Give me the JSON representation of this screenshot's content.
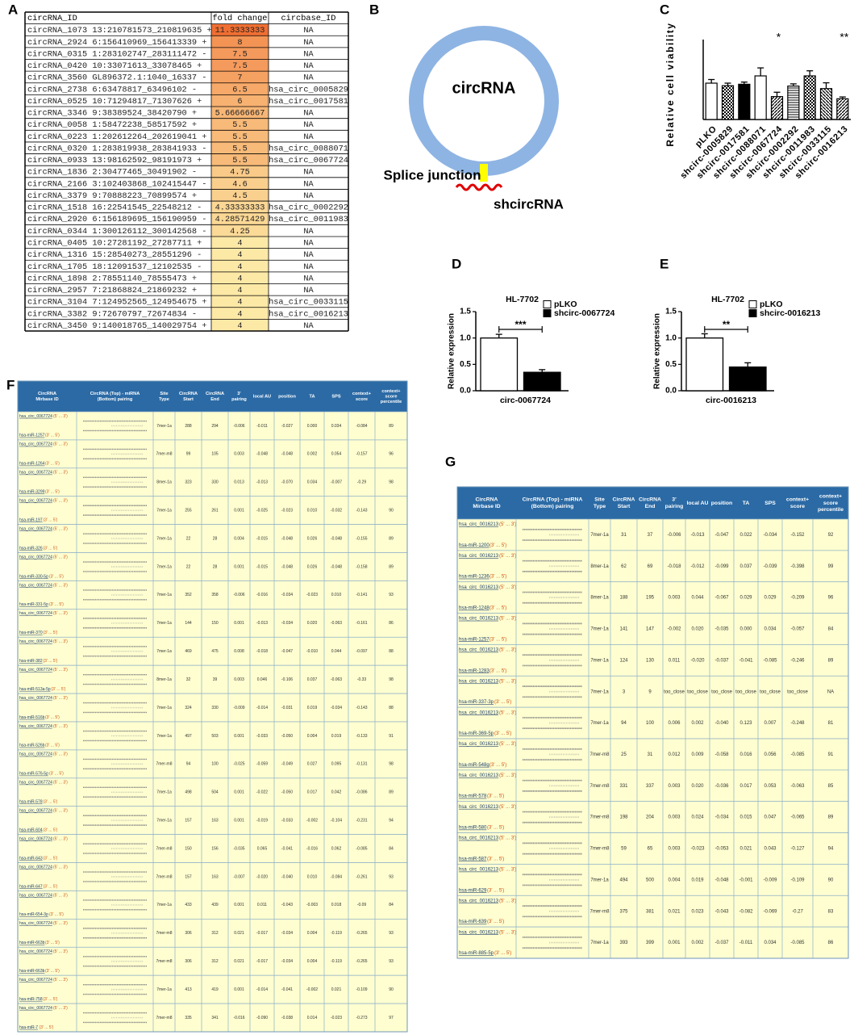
{
  "panel_labels": [
    "A",
    "B",
    "C",
    "D",
    "E",
    "F",
    "G"
  ],
  "table_a": {
    "headers": [
      "circRNA_ID",
      "fold change",
      "circbase_ID"
    ],
    "rows": [
      [
        "circRNA_1073 13:210781573_210819635 +",
        11.3333333,
        "NA"
      ],
      [
        "circRNA_2924 6:156410969_156413339 +",
        8,
        "NA"
      ],
      [
        "circRNA_0315 1:283102747_283111472 -",
        7.5,
        "NA"
      ],
      [
        "circRNA_0420 10:33071613_33078465 +",
        7.5,
        "NA"
      ],
      [
        "circRNA_3560 GL896372.1:1040_16337 -",
        7,
        "NA"
      ],
      [
        "circRNA_2738 6:63478817_63496102 -",
        6.5,
        "hsa_circ_0005829"
      ],
      [
        "circRNA_0525 10:71294817_71307626 +",
        6,
        "hsa_circ_0017581"
      ],
      [
        "circRNA_3346 9:38389524_38420790 +",
        5.66666667,
        "NA"
      ],
      [
        "circRNA_0058 1:58472238_58517592 +",
        5.5,
        "NA"
      ],
      [
        "circRNA_0223 1:202612264_202619041 +",
        5.5,
        "NA"
      ],
      [
        "circRNA_0320 1:283819938_283841933 -",
        5.5,
        "hsa_circ_0088071"
      ],
      [
        "circRNA_0933 13:98162592_98191973 +",
        5.5,
        "hsa_circ_0067724"
      ],
      [
        "circRNA_1836 2:30477465_30491902 -",
        4.75,
        "NA"
      ],
      [
        "circRNA_2166 3:102403868_102415447 -",
        4.6,
        "NA"
      ],
      [
        "circRNA_3379 9:70888223_70899574 +",
        4.5,
        "NA"
      ],
      [
        "circRNA_1518 16:22541545_22548212 -",
        4.33333333,
        "hsa_circ_0002292"
      ],
      [
        "circRNA_2920 6:156189695_156190959 -",
        4.28571429,
        "hsa_circ_0011983"
      ],
      [
        "circRNA_0344 1:300126112_300142568 -",
        4.25,
        "NA"
      ],
      [
        "circRNA_0405 10:27281192_27287711 +",
        4,
        "NA"
      ],
      [
        "circRNA_1316 15:28540273_28551296 -",
        4,
        "NA"
      ],
      [
        "circRNA_1705 18:12091537_12102535 -",
        4,
        "NA"
      ],
      [
        "circRNA_1898 2:78551140_78555473 +",
        4,
        "NA"
      ],
      [
        "circRNA_2957 7:21868824_21869232 +",
        4,
        "NA"
      ],
      [
        "circRNA_3104 7:124952565_124954675 +",
        4,
        "hsa_circ_0033115"
      ],
      [
        "circRNA_3382 9:72670797_72674834 -",
        4,
        "hsa_circ_0016213"
      ],
      [
        "circRNA_3450 9:140018765_140029754 +",
        4,
        "NA"
      ]
    ]
  },
  "diagram_b": {
    "ring": "circRNA",
    "junction": "Splice junction",
    "hairpin": "shcircRNA"
  },
  "chart_data": [
    {
      "type": "bar",
      "y_label": "Relative cell viability",
      "categories": [
        "pLKO",
        "shcirc-0005829",
        "shcirc-0017581",
        "shcirc-0088071",
        "shcirc-0067724",
        "shcirc-0002292",
        "shcirc-0011983",
        "shcirc-0033115",
        "shcirc-0016213"
      ],
      "values": [
        1.0,
        0.93,
        0.97,
        1.2,
        0.63,
        0.92,
        1.2,
        0.85,
        0.57
      ],
      "errors": [
        0.1,
        0.07,
        0.06,
        0.22,
        0.12,
        0.06,
        0.14,
        0.16,
        0.05
      ],
      "fills": [
        "#ffffff",
        "url(#pat-checker)",
        "#000000",
        "#ffffff",
        "url(#pat-diag)",
        "url(#pat-hline)",
        "url(#pat-checker)",
        "url(#pat-diag2)",
        "url(#pat-diag)"
      ],
      "ylim": [
        0,
        2.2
      ],
      "annotations": [
        {
          "text": "*",
          "x": "shcirc-0067724"
        },
        {
          "text": "**",
          "x": "shcirc-0016213"
        }
      ]
    },
    {
      "type": "bar",
      "title": "HL-7702",
      "y_label": "Relative expression",
      "categories": [
        "circ-0067724"
      ],
      "series": [
        {
          "name": "pLKO",
          "color": "#ffffff",
          "values": [
            1.0
          ],
          "errors": [
            0.07
          ]
        },
        {
          "name": "shcirc-0067724",
          "color": "#000000",
          "values": [
            0.35
          ],
          "errors": [
            0.05
          ]
        }
      ],
      "ylim": [
        0,
        1.5
      ],
      "yticks": [
        {
          "value": 0,
          "label": "0.0"
        },
        0.5,
        {
          "value": 1,
          "label": "1.0"
        },
        1.5
      ],
      "legend": "upper right",
      "annotation": "***"
    },
    {
      "type": "bar",
      "title": "HL-7702",
      "y_label": "Relative expression",
      "categories": [
        "circ-0016213"
      ],
      "series": [
        {
          "name": "pLKO",
          "color": "#ffffff",
          "values": [
            1.0
          ],
          "errors": [
            0.08
          ]
        },
        {
          "name": "shcirc-0016213",
          "color": "#000000",
          "values": [
            0.45
          ],
          "errors": [
            0.08
          ]
        }
      ],
      "ylim": [
        0,
        1.5
      ],
      "yticks": [
        {
          "value": 0,
          "label": "0.0"
        },
        0.5,
        {
          "value": 1,
          "label": "1.0"
        },
        1.5
      ],
      "legend": "upper right",
      "annotation": "**"
    }
  ],
  "table_f": {
    "headers": [
      [
        "CircRNA",
        "Mirbase ID"
      ],
      [
        "CircRNA (Top) - miRNA",
        "(Bottom) pairing"
      ],
      [
        "Site",
        "Type"
      ],
      [
        "CircRNA",
        "Start"
      ],
      [
        "CircRNA",
        "End"
      ],
      [
        "3'",
        "pairing"
      ],
      [
        "local AU"
      ],
      [
        "position"
      ],
      [
        "TA"
      ],
      [
        "SPS"
      ],
      [
        "context+",
        "score"
      ],
      [
        "context+",
        "score",
        "percentile"
      ]
    ],
    "circ_dir": "(5' ... 3')",
    "mirna_dir": "(3' ... 5')",
    "rows": [
      [
        "hsa_circ_0067724",
        "hsa-miR-1257",
        "7mer-1a",
        "288",
        "294",
        "-0.006",
        "-0.011",
        "-0.027",
        "0.000",
        "0.034",
        "-0.084",
        "89"
      ],
      [
        "hsa_circ_0067724",
        "hsa-miR-1264",
        "7mer-m8",
        "99",
        "105",
        "0.003",
        "-0.048",
        "-0.048",
        "0.002",
        "0.054",
        "-0.157",
        "96"
      ],
      [
        "hsa_circ_0067724",
        "hsa-miR-3299",
        "8mer-1a",
        "323",
        "330",
        "0.013",
        "-0.013",
        "-0.070",
        "0.034",
        "-0.007",
        "-0.29",
        "98"
      ],
      [
        "hsa_circ_0067724",
        "hsa-miR-197",
        "7mer-1a",
        "255",
        "261",
        "0.001",
        "-0.025",
        "-0.023",
        "0.010",
        "-0.032",
        "-0.143",
        "90"
      ],
      [
        "hsa_circ_0067724",
        "hsa-miR-326",
        "7mer-1a",
        "22",
        "28",
        "0.004",
        "-0.015",
        "-0.048",
        "0.026",
        "-0.048",
        "-0.155",
        "89"
      ],
      [
        "hsa_circ_0067724",
        "hsa-miR-330-5p",
        "7mer-1a",
        "22",
        "28",
        "0.001",
        "-0.015",
        "-0.048",
        "0.026",
        "-0.048",
        "-0.158",
        "89"
      ],
      [
        "hsa_circ_0067724",
        "hsa-miR-331-5p",
        "7mer-1a",
        "352",
        "358",
        "-0.006",
        "-0.016",
        "-0.034",
        "-0.023",
        "0.010",
        "-0.141",
        "93"
      ],
      [
        "hsa_circ_0067724",
        "hsa-miR-370",
        "7mer-1a",
        "144",
        "150",
        "0.001",
        "-0.013",
        "-0.034",
        "0.020",
        "-0.063",
        "-0.161",
        "86"
      ],
      [
        "hsa_circ_0067724",
        "hsa-miR-382",
        "7mer-1a",
        "469",
        "475",
        "0.008",
        "-0.018",
        "-0.047",
        "-0.010",
        "0.044",
        "-0.097",
        "88"
      ],
      [
        "hsa_circ_0067724",
        "hsa-miR-513a-5p",
        "8mer-1a",
        "32",
        "39",
        "0.003",
        "0.046",
        "-0.106",
        "0.037",
        "-0.063",
        "-0.33",
        "98"
      ],
      [
        "hsa_circ_0067724",
        "hsa-miR-516b",
        "7mer-1a",
        "324",
        "330",
        "-0.009",
        "-0.014",
        "-0.031",
        "0.019",
        "-0.034",
        "-0.143",
        "88"
      ],
      [
        "hsa_circ_0067724",
        "hsa-miR-526b",
        "7mer-1a",
        "497",
        "503",
        "0.001",
        "-0.033",
        "-0.050",
        "0.004",
        "0.019",
        "-0.133",
        "91"
      ],
      [
        "hsa_circ_0067724",
        "hsa-miR-576-5p",
        "7mer-m8",
        "94",
        "100",
        "-0.025",
        "-0.059",
        "-0.049",
        "0.027",
        "0.095",
        "-0.131",
        "98"
      ],
      [
        "hsa_circ_0067724",
        "hsa-miR-578",
        "7mer-1a",
        "498",
        "504",
        "0.001",
        "-0.022",
        "-0.050",
        "0.017",
        "0.042",
        "-0.086",
        "89"
      ],
      [
        "hsa_circ_0067724",
        "hsa-miR-604",
        "7mer-1a",
        "157",
        "163",
        "0.001",
        "-0.019",
        "-0.033",
        "-0.002",
        "-0.104",
        "-0.231",
        "94"
      ],
      [
        "hsa_circ_0067724",
        "hsa-miR-643",
        "7mer-m8",
        "150",
        "156",
        "-0.035",
        "0.065",
        "-0.041",
        "-0.016",
        "0.062",
        "-0.085",
        "84"
      ],
      [
        "hsa_circ_0067724",
        "hsa-miR-647",
        "7mer-m8",
        "157",
        "163",
        "-0.007",
        "-0.020",
        "-0.040",
        "0.010",
        "-0.084",
        "-0.261",
        "93"
      ],
      [
        "hsa_circ_0067724",
        "hsa-miR-654-3p",
        "7mer-1a",
        "433",
        "439",
        "0.001",
        "0.011",
        "-0.043",
        "-0.003",
        "0.018",
        "-0.09",
        "84"
      ],
      [
        "hsa_circ_0067724",
        "hsa-miR-663b",
        "7mer-m8",
        "306",
        "312",
        "0.021",
        "-0.017",
        "-0.034",
        "0.004",
        "-0.119",
        "-0.265",
        "93"
      ],
      [
        "hsa_circ_0067724",
        "hsa-miR-663b",
        "7mer-m8",
        "306",
        "312",
        "0.021",
        "-0.017",
        "-0.034",
        "0.004",
        "-0.119",
        "-0.265",
        "93"
      ],
      [
        "hsa_circ_0067724",
        "hsa-miR-758",
        "7mer-1a",
        "413",
        "419",
        "0.001",
        "-0.014",
        "-0.041",
        "-0.002",
        "0.021",
        "-0.109",
        "90"
      ],
      [
        "hsa_circ_0067724",
        "hsa-miR-7",
        "7mer-m8",
        "335",
        "341",
        "-0.016",
        "-0.090",
        "-0.038",
        "0.014",
        "-0.023",
        "-0.273",
        "97"
      ]
    ]
  },
  "table_g": {
    "headers": [
      [
        "CircRNA",
        "Mirbase ID"
      ],
      [
        "CircRNA (Top) - miRNA",
        "(Bottom) pairing"
      ],
      [
        "Site",
        "Type"
      ],
      [
        "CircRNA",
        "Start"
      ],
      [
        "CircRNA",
        "End"
      ],
      [
        "3'",
        "pairing"
      ],
      [
        "local AU"
      ],
      [
        "position"
      ],
      [
        "TA"
      ],
      [
        "SPS"
      ],
      [
        "context+",
        "score"
      ],
      [
        "context+",
        "score",
        "percentile"
      ]
    ],
    "circ_dir": "(5' ... 3')",
    "mirna_dir": "(3' ... 5')",
    "rows": [
      [
        "hsa_circ_0016213",
        "hsa-miR-1200",
        "7mer-1a",
        "31",
        "37",
        "-0.006",
        "-0.013",
        "-0.047",
        "0.022",
        "-0.034",
        "-0.152",
        "92"
      ],
      [
        "hsa_circ_0016213",
        "hsa-miR-1236",
        "8mer-1a",
        "62",
        "69",
        "-0.018",
        "-0.012",
        "-0.099",
        "0.037",
        "-0.039",
        "-0.398",
        "99"
      ],
      [
        "hsa_circ_0016213",
        "hsa-miR-1248",
        "8mer-1a",
        "188",
        "195",
        "0.003",
        "0.044",
        "-0.067",
        "0.029",
        "0.029",
        "-0.209",
        "96"
      ],
      [
        "hsa_circ_0016213",
        "hsa-miR-1257",
        "7mer-1a",
        "141",
        "147",
        "-0.002",
        "0.020",
        "-0.035",
        "0.000",
        "0.034",
        "-0.057",
        "84"
      ],
      [
        "hsa_circ_0016213",
        "hsa-miR-1283",
        "7mer-1a",
        "124",
        "130",
        "0.011",
        "-0.020",
        "-0.037",
        "-0.041",
        "-0.085",
        "-0.246",
        "89"
      ],
      [
        "hsa_circ_0016213",
        "hsa-miR-337-3p",
        "7mer-1a",
        "3",
        "9",
        "too_close",
        "too_close",
        "too_close",
        "too_close",
        "too_close",
        "too_close",
        "NA"
      ],
      [
        "hsa_circ_0016213",
        "hsa-miR-369-5p",
        "7mer-1a",
        "94",
        "100",
        "0.006",
        "0.002",
        "-0.040",
        "0.123",
        "0.007",
        "-0.248",
        "81"
      ],
      [
        "hsa_circ_0016213",
        "hsa-miR-548g",
        "7mer-m8",
        "25",
        "31",
        "0.012",
        "0.009",
        "-0.058",
        "0.016",
        "0.056",
        "-0.085",
        "91"
      ],
      [
        "hsa_circ_0016213",
        "hsa-miR-578",
        "7mer-m8",
        "331",
        "337",
        "0.003",
        "0.020",
        "-0.036",
        "0.017",
        "0.053",
        "-0.063",
        "85"
      ],
      [
        "hsa_circ_0016213",
        "hsa-miR-580",
        "7mer-m8",
        "198",
        "204",
        "0.003",
        "0.024",
        "-0.034",
        "0.015",
        "0.047",
        "-0.065",
        "89"
      ],
      [
        "hsa_circ_0016213",
        "hsa-miR-587",
        "7mer-m8",
        "59",
        "65",
        "0.003",
        "-0.023",
        "-0.053",
        "0.021",
        "0.043",
        "-0.127",
        "94"
      ],
      [
        "hsa_circ_0016213",
        "hsa-miR-629",
        "7mer-1a",
        "494",
        "500",
        "0.004",
        "0.019",
        "-0.048",
        "-0.001",
        "-0.009",
        "-0.109",
        "90"
      ],
      [
        "hsa_circ_0016213",
        "hsa-miR-639",
        "7mer-m8",
        "375",
        "381",
        "0.021",
        "0.023",
        "-0.043",
        "-0.082",
        "-0.069",
        "-0.27",
        "83"
      ],
      [
        "hsa_circ_0016213",
        "hsa-miR-885-5p",
        "7mer-1a",
        "393",
        "399",
        "0.001",
        "0.002",
        "-0.037",
        "-0.011",
        "0.034",
        "-0.085",
        "86"
      ]
    ]
  }
}
